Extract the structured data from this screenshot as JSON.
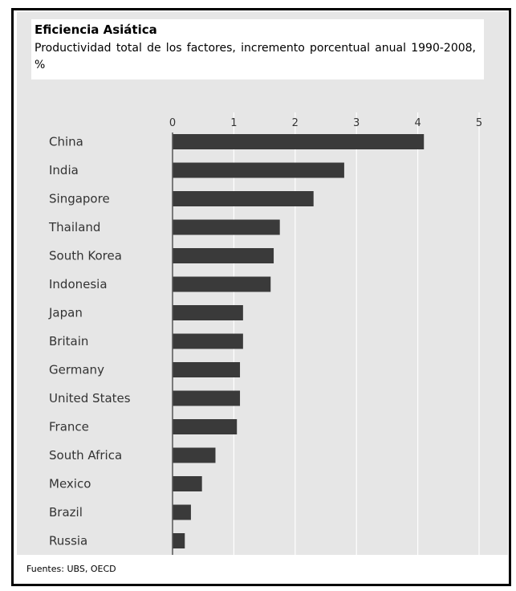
{
  "chart_data": {
    "type": "bar",
    "orientation": "horizontal",
    "title": "Eficiencia Asiática",
    "subtitle": "Productividad total de los factores, incremento porcentual anual 1990-2008, %",
    "source": "Fuentes: UBS, OECD",
    "categories": [
      "China",
      "India",
      "Singapore",
      "Thailand",
      "South Korea",
      "Indonesia",
      "Japan",
      "Britain",
      "Germany",
      "United States",
      "France",
      "South Africa",
      "Mexico",
      "Brazil",
      "Russia"
    ],
    "values": [
      4.1,
      2.8,
      2.3,
      1.75,
      1.65,
      1.6,
      1.15,
      1.15,
      1.1,
      1.1,
      1.05,
      0.7,
      0.48,
      0.3,
      0.2
    ],
    "xlim": [
      0,
      5
    ],
    "xticks": [
      "0",
      "1",
      "2",
      "3",
      "4",
      "5"
    ],
    "grid": true,
    "colors": {
      "bar": "#3a3a3a",
      "background": "#e6e6e6",
      "grid": "#ffffff"
    }
  }
}
